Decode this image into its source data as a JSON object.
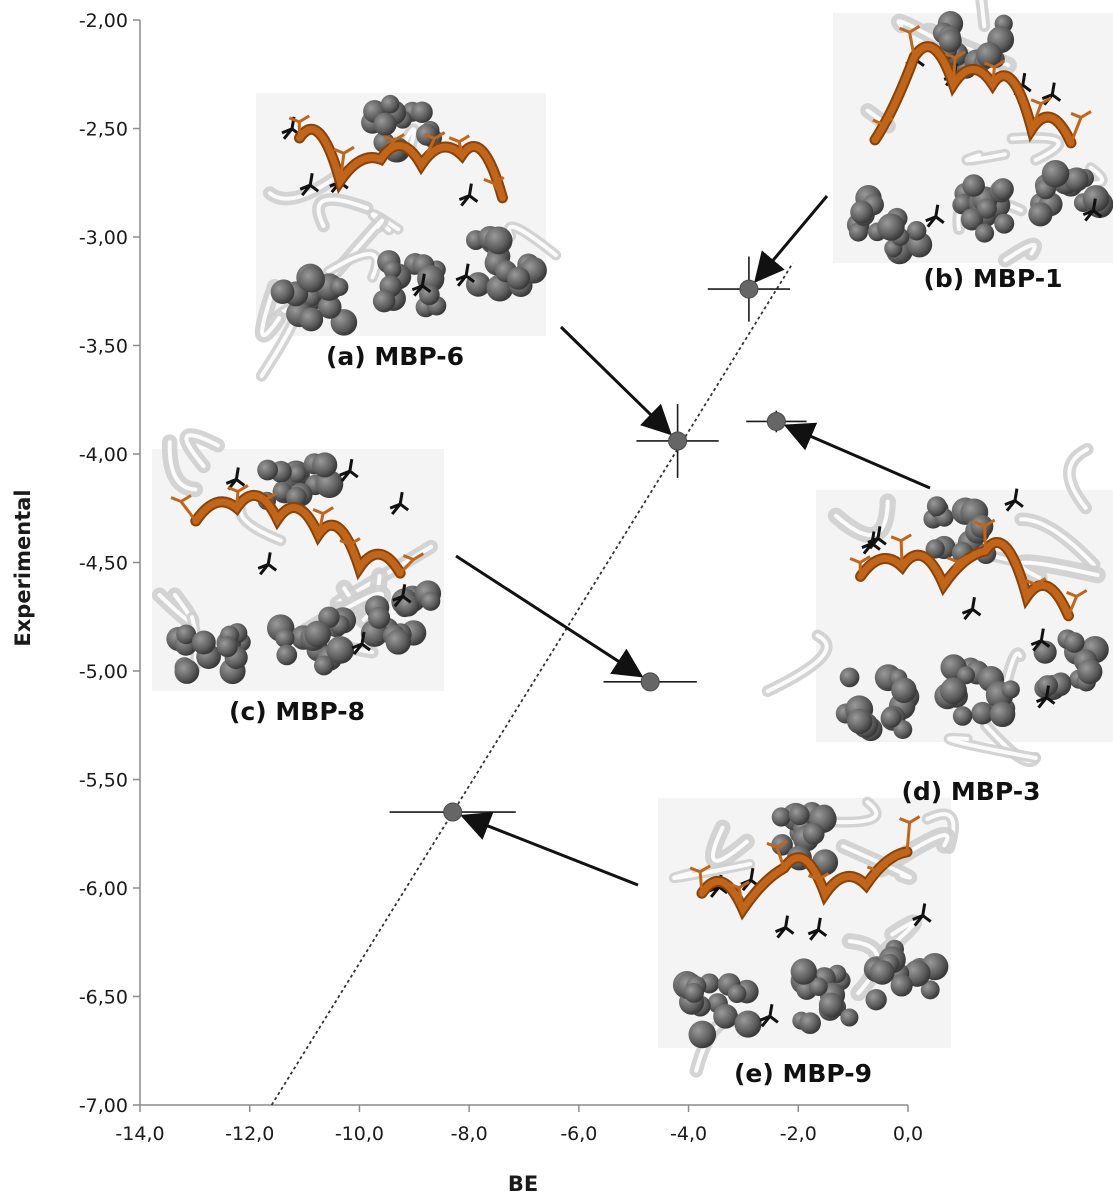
{
  "chart_data": {
    "type": "scatter",
    "title": "",
    "xlabel": "BE",
    "ylabel": "Experimental",
    "xlim": [
      -14.0,
      0.0
    ],
    "ylim": [
      -7.0,
      -2.0
    ],
    "x_ticks": [
      "-14,0",
      "-12,0",
      "-10,0",
      "-8,0",
      "-6,0",
      "-4,0",
      "-2,0",
      "0,0"
    ],
    "x_tick_values": [
      -14,
      -12,
      -10,
      -8,
      -6,
      -4,
      -2,
      0
    ],
    "y_ticks": [
      "-2,00",
      "-2,50",
      "-3,00",
      "-3,50",
      "-4,00",
      "-4,50",
      "-5,00",
      "-5,50",
      "-6,00",
      "-6,50",
      "-7,00"
    ],
    "y_tick_values": [
      -2.0,
      -2.5,
      -3.0,
      -3.5,
      -4.0,
      -4.5,
      -5.0,
      -5.5,
      -6.0,
      -6.5,
      -7.0
    ],
    "grid": false,
    "legend": "none",
    "series": [
      {
        "points": [
          {
            "x": -2.9,
            "y": -3.24,
            "xerr": 0.75,
            "yerr": 0.15
          },
          {
            "x": -4.2,
            "y": -3.94,
            "xerr": 0.75,
            "yerr": 0.17
          },
          {
            "x": -2.4,
            "y": -3.85,
            "xerr": 0.55,
            "yerr": 0.05
          },
          {
            "x": -4.7,
            "y": -5.05,
            "xerr": 0.85,
            "yerr": 0.0
          },
          {
            "x": -8.3,
            "y": -5.65,
            "xerr": 1.15,
            "yerr": 0.0
          }
        ]
      }
    ],
    "trendline": {
      "style": "dotted",
      "from": {
        "x": -11.6,
        "y": -7.0
      },
      "to": {
        "x": -2.1,
        "y": -3.12
      }
    },
    "annotations": [
      {
        "label": "(a) MBP-6",
        "points_to": 1
      },
      {
        "label": "(b) MBP-1",
        "points_to": 0
      },
      {
        "label": "(c) MBP-8",
        "points_to": 3
      },
      {
        "label": "(d) MBP-3",
        "points_to": 2
      },
      {
        "label": "(e) MBP-9",
        "points_to": 4
      }
    ]
  },
  "colors": {
    "point": "#666666",
    "error_bar": "#1a1a1a",
    "trendline": "#333333",
    "arrow": "#111111",
    "axis": "#8c8c8c",
    "peptide": "#c0651a",
    "peptide_dark": "#8a4208",
    "residue_gray": "#6a6a6a",
    "ribbon": "#dedede",
    "residue_black": "#111111"
  },
  "icons": [
    "molecular-structure-render"
  ]
}
